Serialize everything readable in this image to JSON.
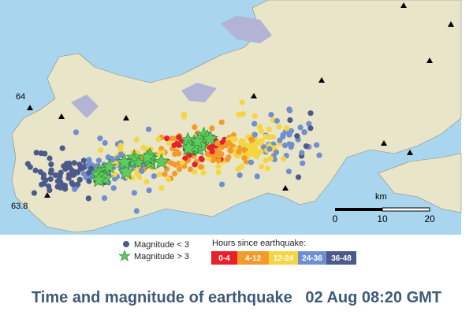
{
  "map": {
    "lat_labels": [
      "64",
      "63.8"
    ],
    "scale": {
      "unit": "km",
      "ticks": [
        "0",
        "10",
        "20"
      ]
    }
  },
  "legend": {
    "small": "Magnitude < 3",
    "large": "Magnitude > 3",
    "hours_title": "Hours since earthquake:",
    "hours": [
      "0-4",
      "4-12",
      "12-24",
      "24-36",
      "36-48"
    ]
  },
  "caption": "Time and magnitude of earthquake   02 Aug 08:20 GMT"
}
